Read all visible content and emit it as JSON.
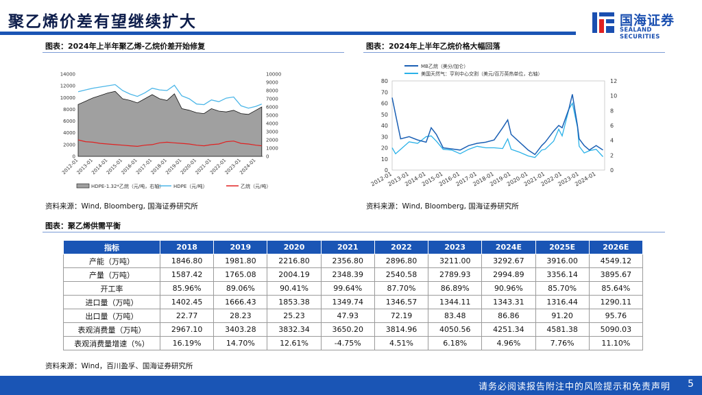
{
  "page": {
    "title": "聚乙烯价差有望继续扩大",
    "page_number": "5",
    "footer": "请务必阅读报告附注中的风险提示和免责声明"
  },
  "logo": {
    "cn": "国海证券",
    "en": "SEALAND SECURITIES"
  },
  "panels": {
    "left_title": "图表：2024年上半年聚乙烯-乙烷价差开始修复",
    "right_title": "图表：2024年上半年乙烷价格大幅回落",
    "left_source": "资料来源：Wind, Bloomberg, 国海证券研究所",
    "right_source": "资料来源：Wind, Bloomberg, 国海证券研究所",
    "table_title": "图表：聚乙烯供需平衡",
    "table_source": "资料来源：Wind，百川盈孚、国海证券研究所"
  },
  "chart_data": [
    {
      "type": "area",
      "left_yticks": [
        "14000",
        "12000",
        "10000",
        "8000",
        "6000",
        "4000",
        "2000",
        "0"
      ],
      "right_yticks": [
        "10000",
        "9000",
        "8000",
        "7000",
        "6000",
        "5000",
        "4000",
        "3000",
        "2000",
        "1000",
        "0"
      ],
      "xticks": [
        "2012-01",
        "2013-01",
        "2014-01",
        "2015-01",
        "2016-01",
        "2017-01",
        "2018-01",
        "2019-01",
        "2020-01",
        "2021-01",
        "2022-01",
        "2023-01",
        "2024-01"
      ],
      "legend": [
        "HDPE-1.32*乙烷（元/吨，右轴）",
        "HDPE（元/吨）",
        "乙烷（元/吨）"
      ],
      "colors": {
        "spread": "#a0a0a0",
        "hdpe": "#4bb6e8",
        "ethane": "#e02020"
      },
      "x": [
        2012.0,
        2012.5,
        2013.0,
        2013.5,
        2014.0,
        2014.5,
        2015.0,
        2015.5,
        2016.0,
        2016.5,
        2017.0,
        2017.5,
        2018.0,
        2018.5,
        2019.0,
        2019.5,
        2020.0,
        2020.5,
        2021.0,
        2021.5,
        2022.0,
        2022.5,
        2023.0,
        2023.5,
        2024.0,
        2024.4
      ],
      "series": [
        {
          "name": "HDPE（元/吨）",
          "values": [
            11000,
            11300,
            11600,
            11800,
            12000,
            12200,
            11200,
            10600,
            10200,
            10800,
            11600,
            11300,
            11200,
            12100,
            10300,
            9800,
            8900,
            8800,
            9600,
            9300,
            9900,
            10100,
            8600,
            8200,
            8500,
            8900
          ]
        },
        {
          "name": "乙烷（元/吨）",
          "values": [
            2800,
            2500,
            2400,
            2200,
            2100,
            2000,
            1900,
            1800,
            1700,
            1900,
            2000,
            2300,
            2400,
            2300,
            2200,
            2100,
            1900,
            1800,
            2000,
            2100,
            2500,
            2600,
            2200,
            2100,
            1900,
            1800
          ]
        },
        {
          "name": "HDPE-1.32*乙烷（元/吨，右轴）",
          "values": [
            6300,
            6700,
            7100,
            7400,
            7700,
            7900,
            7000,
            6800,
            6500,
            7000,
            7500,
            7000,
            6800,
            7600,
            5800,
            5600,
            5300,
            5200,
            5800,
            5500,
            5400,
            5600,
            5200,
            5100,
            5600,
            6000
          ]
        }
      ]
    },
    {
      "type": "line",
      "left_yticks": [
        "80",
        "70",
        "60",
        "50",
        "40",
        "30",
        "20",
        "10",
        "0"
      ],
      "right_yticks": [
        "12",
        "10",
        "8",
        "6",
        "4",
        "2",
        "0"
      ],
      "xticks": [
        "2012-01",
        "2013-01",
        "2014-01",
        "2015-01",
        "2016-01",
        "2017-01",
        "2018-01",
        "2019-01",
        "2020-01",
        "2021-01",
        "2022-01",
        "2023-01",
        "2024-01"
      ],
      "legend": [
        "MB乙烷（美分/加仑）",
        "美国天然气：亨利中心交割（美元/百万英热单位，右轴）"
      ],
      "colors": {
        "ethane": "#1a5fb4",
        "gas": "#29b1e8"
      },
      "x": [
        2012.0,
        2012.2,
        2012.5,
        2013.0,
        2013.5,
        2014.0,
        2014.3,
        2014.6,
        2015.0,
        2015.5,
        2016.0,
        2016.5,
        2017.0,
        2017.5,
        2018.0,
        2018.5,
        2018.8,
        2019.0,
        2019.5,
        2020.0,
        2020.4,
        2020.8,
        2021.0,
        2021.5,
        2021.8,
        2022.0,
        2022.4,
        2022.6,
        2022.9,
        2023.0,
        2023.3,
        2023.6,
        2024.0,
        2024.4
      ],
      "series": [
        {
          "name": "MB乙烷（美分/加仑）",
          "values": [
            65,
            50,
            28,
            30,
            27,
            25,
            38,
            32,
            20,
            19,
            18,
            22,
            24,
            25,
            27,
            38,
            45,
            32,
            25,
            18,
            14,
            22,
            25,
            35,
            40,
            38,
            55,
            68,
            40,
            28,
            22,
            18,
            22,
            18
          ]
        },
        {
          "name": "美国天然气：亨利中心交割（美元/百万英热单位，右轴）",
          "values": [
            3.0,
            2.2,
            2.8,
            3.8,
            3.6,
            4.5,
            4.6,
            3.9,
            2.8,
            2.7,
            2.2,
            2.8,
            3.2,
            3.0,
            3.0,
            2.9,
            4.2,
            2.8,
            2.4,
            1.9,
            1.7,
            2.7,
            2.8,
            3.9,
            5.5,
            4.6,
            8.2,
            9.0,
            5.8,
            3.2,
            2.3,
            2.6,
            2.8,
            1.8
          ]
        }
      ]
    },
    {
      "type": "table",
      "columns": [
        "指标",
        "2018",
        "2019",
        "2020",
        "2021",
        "2022",
        "2023",
        "2024E",
        "2025E",
        "2026E"
      ],
      "rows": [
        {
          "label": "产能（万吨）",
          "values": [
            "1846.80",
            "1981.80",
            "2216.80",
            "2356.80",
            "2896.80",
            "3211.00",
            "3292.67",
            "3916.00",
            "4549.12"
          ]
        },
        {
          "label": "产量（万吨）",
          "values": [
            "1587.42",
            "1765.08",
            "2004.19",
            "2348.39",
            "2540.58",
            "2789.93",
            "2994.89",
            "3356.14",
            "3895.67"
          ]
        },
        {
          "label": "开工率",
          "values": [
            "85.96%",
            "89.06%",
            "90.41%",
            "99.64%",
            "87.70%",
            "86.89%",
            "90.96%",
            "85.70%",
            "85.64%"
          ]
        },
        {
          "label": "进口量（万吨）",
          "values": [
            "1402.45",
            "1666.43",
            "1853.38",
            "1349.74",
            "1346.57",
            "1344.11",
            "1343.31",
            "1316.44",
            "1290.11"
          ]
        },
        {
          "label": "出口量（万吨）",
          "values": [
            "22.77",
            "28.23",
            "25.23",
            "47.93",
            "72.19",
            "83.48",
            "86.86",
            "91.20",
            "95.76"
          ]
        },
        {
          "label": "表观消费量（万吨）",
          "values": [
            "2967.10",
            "3403.28",
            "3832.34",
            "3650.20",
            "3814.96",
            "4050.56",
            "4251.34",
            "4581.38",
            "5090.03"
          ]
        },
        {
          "label": "表观消费量增速（%）",
          "values": [
            "16.19%",
            "14.70%",
            "12.61%",
            "-4.75%",
            "4.51%",
            "6.18%",
            "4.96%",
            "7.76%",
            "11.10%"
          ]
        }
      ]
    }
  ]
}
